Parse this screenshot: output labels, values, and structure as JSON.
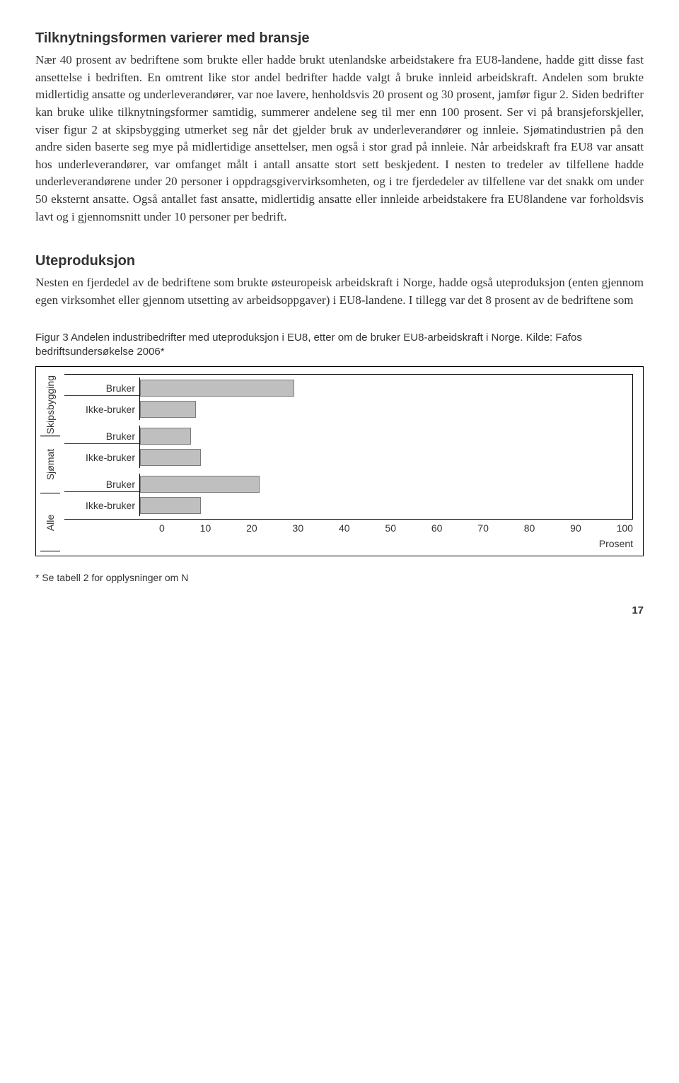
{
  "section1": {
    "title": "Tilknytningsformen varierer med bransje",
    "body": "Nær 40 prosent av bedriftene som brukte eller hadde brukt utenlandske arbeidstakere fra EU8-landene, hadde gitt disse fast ansettelse i bedriften. En omtrent like stor andel bedrifter hadde valgt å bruke innleid arbeidskraft. Andelen som brukte midlertidig ansatte og underleverandører, var noe lavere, henholdsvis 20 prosent og 30 prosent, jamfør figur 2. Siden bedrifter kan bruke ulike tilknytningsformer samtidig, summerer andelene seg til mer enn 100 prosent. Ser vi på bransjeforskjeller, viser figur 2 at skipsbygging utmerket seg når det gjelder bruk av underleverandører og innleie. Sjømatindustrien på den andre siden baserte seg mye på midlertidige ansettelser, men også i stor grad på innleie. Når arbeidskraft fra EU8 var ansatt hos underleverandører, var omfanget målt i antall ansatte stort sett beskjedent. I nesten to tredeler av tilfellene hadde underleverandørene under 20 personer i oppdragsgivervirksomheten, og i tre fjerdedeler av tilfellene var det snakk om under 50 eksternt ansatte. Også antallet fast ansatte, midlertidig ansatte eller innleide arbeidstakere fra EU8landene var forholdsvis lavt og i gjennomsnitt under 10 personer per bedrift."
  },
  "section2": {
    "title": "Uteproduksjon",
    "body": "Nesten en fjerdedel av de bedriftene som brukte østeuropeisk arbeidskraft i Norge, hadde også uteproduksjon (enten gjennom egen virksomhet eller gjennom utsetting av arbeidsoppgaver) i EU8-landene. I tillegg var det 8 prosent av de bedriftene som"
  },
  "figure": {
    "caption": "Figur 3 Andelen industribedrifter med uteproduksjon i EU8, etter om de bruker EU8-arbeidskraft i Norge. Kilde: Fafos bedriftsundersøkelse 2006*",
    "type": "bar",
    "xlim": [
      0,
      100
    ],
    "xtick_step": 10,
    "xticks": [
      "0",
      "10",
      "20",
      "30",
      "40",
      "50",
      "60",
      "70",
      "80",
      "90",
      "100"
    ],
    "xlabel": "Prosent",
    "bar_color": "#bfbfbf",
    "bar_border": "#7a7a7a",
    "background_color": "#ffffff",
    "groups": [
      {
        "name": "Skipsbygging",
        "bars": [
          {
            "label": "Bruker",
            "value": 31
          },
          {
            "label": "Ikke-bruker",
            "value": 11
          }
        ]
      },
      {
        "name": "Sjømat",
        "bars": [
          {
            "label": "Bruker",
            "value": 10
          },
          {
            "label": "Ikke-bruker",
            "value": 12
          }
        ]
      },
      {
        "name": "Alle",
        "bars": [
          {
            "label": "Bruker",
            "value": 24
          },
          {
            "label": "Ikke-bruker",
            "value": 12
          }
        ]
      }
    ]
  },
  "footnote": "* Se tabell 2 for opplysninger om N",
  "page_number": "17"
}
